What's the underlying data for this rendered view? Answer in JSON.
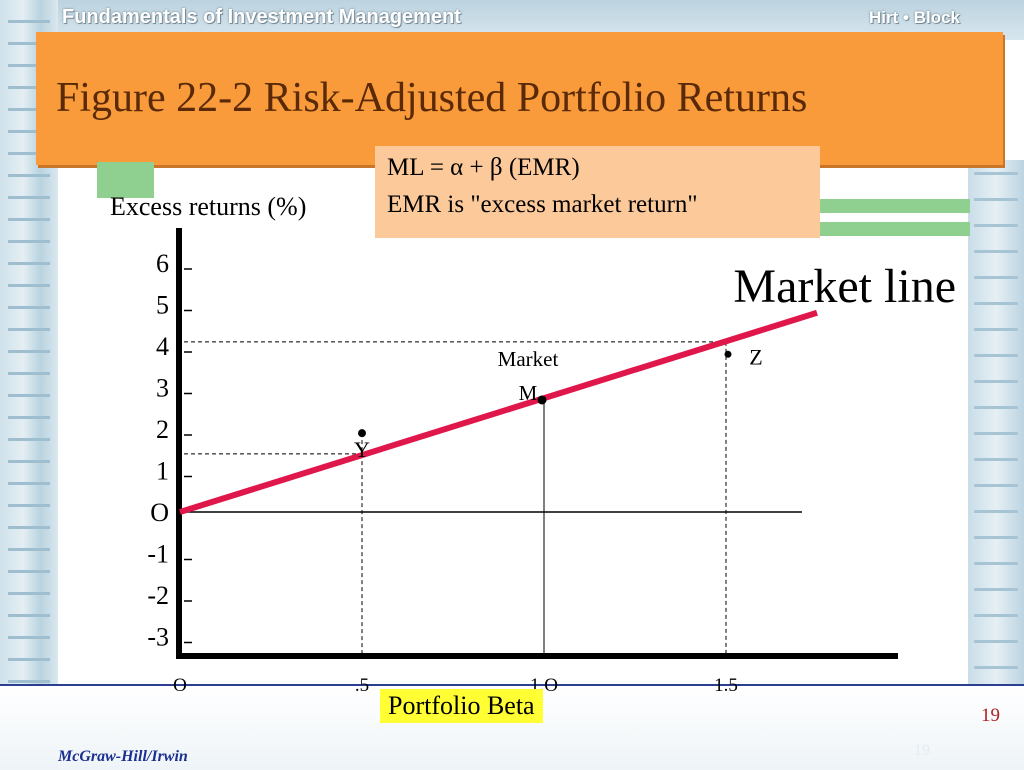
{
  "header": {
    "course": "Fundamentals of Investment Management",
    "authors": "Hirt • Block"
  },
  "slide": {
    "title": "Figure 22-2  Risk-Adjusted Portfolio Returns",
    "page_number": "19",
    "page_number_faint": "19",
    "publisher": "McGraw-Hill/Irwin"
  },
  "formula": {
    "line1": "ML =  α  +  β (EMR)",
    "line2": "EMR is \"excess market return\""
  },
  "colors": {
    "title_bg": "#f99b3a",
    "formula_bg": "#fcc99b",
    "xlabel_bg": "#ffff33",
    "market_line": "#e0174b",
    "accent_green": "#8fcf8f"
  },
  "chart_data": {
    "type": "line",
    "ylabel": "Excess returns (%)",
    "xlabel": "Portfolio Beta",
    "y_ticks": [
      "6",
      "5",
      "4",
      "3",
      "2",
      "1",
      "O",
      "-1",
      "-2",
      "-3"
    ],
    "y_tick_values": [
      6,
      5,
      4,
      3,
      2,
      1,
      0,
      -1,
      -2,
      -3
    ],
    "x_ticks": [
      "O",
      ".5",
      "1.O",
      "1.5"
    ],
    "x_tick_values": [
      0,
      0.5,
      1.0,
      1.5
    ],
    "ylim": [
      -3.5,
      6
    ],
    "xlim": [
      0,
      1.75
    ],
    "series": [
      {
        "name": "Market line",
        "x": [
          0,
          1.75
        ],
        "y": [
          0,
          4.8
        ]
      }
    ],
    "points": [
      {
        "label": "Y",
        "x": 0.5,
        "y": 1.9
      },
      {
        "label": "Market M",
        "x": 1.0,
        "y": 2.7
      },
      {
        "label": "Z",
        "x": 1.5,
        "y": 3.8
      }
    ],
    "reference_lines": [
      {
        "from": "Y",
        "y_value": 1.4
      },
      {
        "from": "Z",
        "y_value": 4.1
      }
    ],
    "grid": false
  }
}
